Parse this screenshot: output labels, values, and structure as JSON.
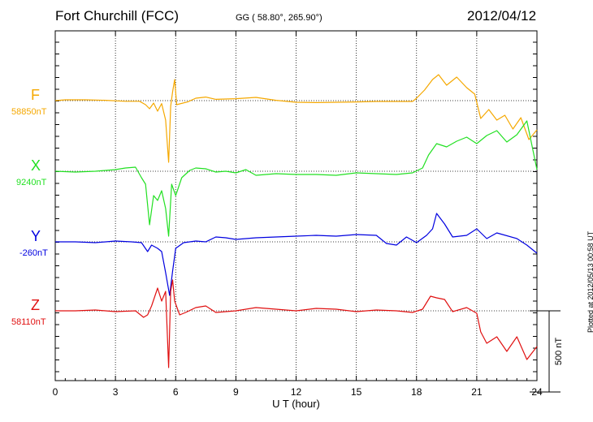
{
  "header": {
    "station": "Fort Churchill (FCC)",
    "coords": "GG ( 58.80°, 265.90°)",
    "date": "2012/04/12"
  },
  "footer": {
    "plotted": "Plotted at 2012/05/13 00:58 UT"
  },
  "chart_data": {
    "type": "line",
    "title": "Fort Churchill (FCC)",
    "xlabel": "U T (hour)",
    "ylabel": "",
    "xlim": [
      0,
      24
    ],
    "x_ticks": [
      0,
      3,
      6,
      9,
      12,
      15,
      18,
      21,
      24
    ],
    "x_tick_labels": [
      "0",
      "3",
      "6",
      "9",
      "12",
      "15",
      "18",
      "21",
      "24"
    ],
    "grid": true,
    "scale_bar": {
      "value": 500,
      "label": "500 nT"
    },
    "series": [
      {
        "name": "F",
        "baseline_label": "58850nT",
        "color": "#f5a800",
        "points": [
          [
            0,
            0
          ],
          [
            0.5,
            5
          ],
          [
            1.5,
            5
          ],
          [
            2.5,
            2
          ],
          [
            3.5,
            -4
          ],
          [
            4.2,
            -4
          ],
          [
            4.5,
            -25
          ],
          [
            4.7,
            -50
          ],
          [
            4.9,
            -15
          ],
          [
            5.1,
            -65
          ],
          [
            5.3,
            -18
          ],
          [
            5.5,
            -120
          ],
          [
            5.65,
            -380
          ],
          [
            5.75,
            -35
          ],
          [
            5.85,
            55
          ],
          [
            5.95,
            130
          ],
          [
            6.05,
            -25
          ],
          [
            6.2,
            -20
          ],
          [
            6.6,
            -8
          ],
          [
            7,
            15
          ],
          [
            7.5,
            22
          ],
          [
            8,
            8
          ],
          [
            9,
            12
          ],
          [
            10,
            20
          ],
          [
            11,
            2
          ],
          [
            12,
            -10
          ],
          [
            13,
            -12
          ],
          [
            14,
            -10
          ],
          [
            15,
            -8
          ],
          [
            16,
            -5
          ],
          [
            17,
            -5
          ],
          [
            17.8,
            -5
          ],
          [
            18,
            15
          ],
          [
            18.4,
            65
          ],
          [
            18.8,
            130
          ],
          [
            19.1,
            160
          ],
          [
            19.5,
            95
          ],
          [
            20,
            145
          ],
          [
            20.5,
            80
          ],
          [
            20.9,
            40
          ],
          [
            21.2,
            -110
          ],
          [
            21.6,
            -55
          ],
          [
            22,
            -120
          ],
          [
            22.4,
            -90
          ],
          [
            22.8,
            -175
          ],
          [
            23.2,
            -105
          ],
          [
            23.6,
            -240
          ],
          [
            24,
            -180
          ]
        ]
      },
      {
        "name": "X",
        "baseline_label": "9240nT",
        "color": "#22e022",
        "points": [
          [
            0,
            0
          ],
          [
            1,
            -5
          ],
          [
            2,
            0
          ],
          [
            3,
            10
          ],
          [
            3.5,
            20
          ],
          [
            4,
            25
          ],
          [
            4.3,
            -40
          ],
          [
            4.5,
            -80
          ],
          [
            4.7,
            -330
          ],
          [
            4.9,
            -150
          ],
          [
            5.1,
            -180
          ],
          [
            5.3,
            -120
          ],
          [
            5.5,
            -230
          ],
          [
            5.65,
            -400
          ],
          [
            5.8,
            -80
          ],
          [
            6,
            -150
          ],
          [
            6.3,
            -40
          ],
          [
            6.7,
            5
          ],
          [
            7,
            20
          ],
          [
            7.5,
            15
          ],
          [
            8,
            -5
          ],
          [
            8.5,
            0
          ],
          [
            9,
            -10
          ],
          [
            9.5,
            10
          ],
          [
            10,
            -25
          ],
          [
            11,
            -15
          ],
          [
            12,
            -20
          ],
          [
            13,
            -20
          ],
          [
            14,
            -25
          ],
          [
            15,
            -10
          ],
          [
            16,
            -15
          ],
          [
            17,
            -20
          ],
          [
            17.8,
            -10
          ],
          [
            18.3,
            20
          ],
          [
            18.6,
            100
          ],
          [
            19,
            170
          ],
          [
            19.5,
            150
          ],
          [
            20,
            185
          ],
          [
            20.5,
            210
          ],
          [
            21,
            170
          ],
          [
            21.5,
            220
          ],
          [
            22,
            250
          ],
          [
            22.5,
            180
          ],
          [
            23,
            225
          ],
          [
            23.5,
            310
          ],
          [
            24,
            10
          ]
        ]
      },
      {
        "name": "Y",
        "baseline_label": "-260nT",
        "color": "#0000e0",
        "points": [
          [
            0,
            0
          ],
          [
            1,
            0
          ],
          [
            2,
            -5
          ],
          [
            3,
            5
          ],
          [
            3.8,
            0
          ],
          [
            4.3,
            -5
          ],
          [
            4.6,
            -60
          ],
          [
            4.8,
            -20
          ],
          [
            5.1,
            -40
          ],
          [
            5.3,
            -60
          ],
          [
            5.5,
            -190
          ],
          [
            5.7,
            -330
          ],
          [
            5.85,
            -180
          ],
          [
            6,
            -40
          ],
          [
            6.4,
            -5
          ],
          [
            7,
            5
          ],
          [
            7.5,
            0
          ],
          [
            8,
            30
          ],
          [
            8.5,
            25
          ],
          [
            9,
            15
          ],
          [
            10,
            25
          ],
          [
            11,
            30
          ],
          [
            12,
            35
          ],
          [
            13,
            40
          ],
          [
            14,
            35
          ],
          [
            15,
            45
          ],
          [
            16,
            40
          ],
          [
            16.5,
            -10
          ],
          [
            17,
            -20
          ],
          [
            17.5,
            30
          ],
          [
            18,
            -5
          ],
          [
            18.5,
            40
          ],
          [
            18.8,
            80
          ],
          [
            19,
            175
          ],
          [
            19.4,
            110
          ],
          [
            19.8,
            30
          ],
          [
            20.5,
            40
          ],
          [
            21,
            80
          ],
          [
            21.5,
            20
          ],
          [
            22,
            55
          ],
          [
            23,
            20
          ],
          [
            23.5,
            -20
          ],
          [
            24,
            -70
          ]
        ]
      },
      {
        "name": "Z",
        "baseline_label": "58110nT",
        "color": "#e01010",
        "points": [
          [
            0,
            0
          ],
          [
            1,
            0
          ],
          [
            2,
            5
          ],
          [
            3,
            -5
          ],
          [
            4,
            0
          ],
          [
            4.4,
            -40
          ],
          [
            4.6,
            -25
          ],
          [
            4.8,
            30
          ],
          [
            5.1,
            140
          ],
          [
            5.3,
            60
          ],
          [
            5.5,
            120
          ],
          [
            5.65,
            -350
          ],
          [
            5.75,
            120
          ],
          [
            5.85,
            190
          ],
          [
            5.95,
            60
          ],
          [
            6.2,
            -25
          ],
          [
            6.5,
            -10
          ],
          [
            7,
            20
          ],
          [
            7.5,
            30
          ],
          [
            8,
            -10
          ],
          [
            9,
            0
          ],
          [
            10,
            20
          ],
          [
            11,
            10
          ],
          [
            12,
            0
          ],
          [
            13,
            15
          ],
          [
            14,
            10
          ],
          [
            15,
            -5
          ],
          [
            16,
            5
          ],
          [
            17,
            0
          ],
          [
            17.8,
            -10
          ],
          [
            18.3,
            10
          ],
          [
            18.7,
            90
          ],
          [
            19,
            80
          ],
          [
            19.4,
            70
          ],
          [
            19.8,
            -5
          ],
          [
            20.5,
            20
          ],
          [
            21,
            -15
          ],
          [
            21.2,
            -130
          ],
          [
            21.5,
            -200
          ],
          [
            22,
            -160
          ],
          [
            22.5,
            -250
          ],
          [
            23,
            -160
          ],
          [
            23.5,
            -300
          ],
          [
            24,
            -220
          ]
        ]
      }
    ]
  }
}
